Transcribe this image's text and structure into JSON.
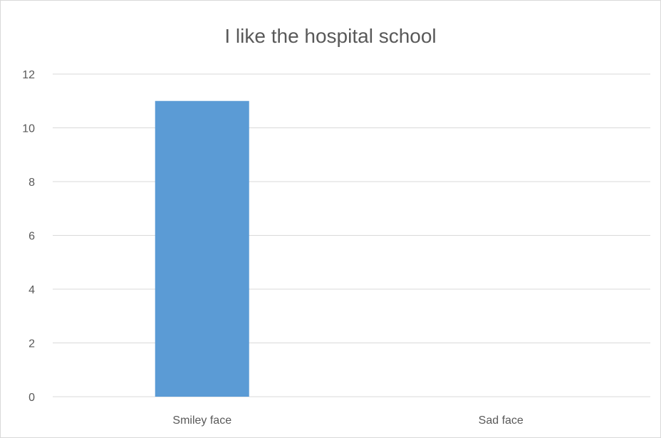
{
  "chart_data": {
    "type": "bar",
    "title": "I like the hospital school",
    "categories": [
      "Smiley face",
      "Sad face"
    ],
    "values": [
      11,
      0
    ],
    "xlabel": "",
    "ylabel": "",
    "ylim": [
      0,
      12
    ],
    "yticks": [
      0,
      2,
      4,
      6,
      8,
      10,
      12
    ],
    "grid": true,
    "legend": "none",
    "bar_color": "#5b9bd5",
    "grid_color": "#d9d9d9",
    "text_color": "#595959"
  }
}
